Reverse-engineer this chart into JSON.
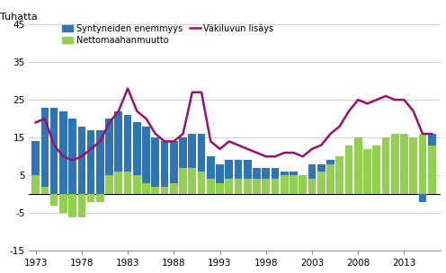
{
  "years": [
    1973,
    1974,
    1975,
    1976,
    1977,
    1978,
    1979,
    1980,
    1981,
    1982,
    1983,
    1984,
    1985,
    1986,
    1987,
    1988,
    1989,
    1990,
    1991,
    1992,
    1993,
    1994,
    1995,
    1996,
    1997,
    1998,
    1999,
    2000,
    2001,
    2002,
    2003,
    2004,
    2005,
    2006,
    2007,
    2008,
    2009,
    2010,
    2011,
    2012,
    2013,
    2014,
    2015,
    2016
  ],
  "syntyneiden_enemmyys": [
    14,
    23,
    23,
    22,
    20,
    18,
    17,
    17,
    20,
    22,
    21,
    19,
    18,
    15,
    14,
    14,
    15,
    16,
    16,
    10,
    8,
    9,
    9,
    9,
    7,
    7,
    7,
    6,
    6,
    5,
    8,
    8,
    9,
    9,
    9,
    9,
    9,
    8,
    7,
    6,
    5,
    2,
    -2,
    16
  ],
  "nettomaahanmuutto": [
    5,
    2,
    -3,
    -5,
    -6,
    -6,
    -2,
    -2,
    5,
    6,
    6,
    5,
    3,
    2,
    2,
    3,
    7,
    7,
    6,
    4,
    3,
    4,
    4,
    4,
    4,
    4,
    4,
    5,
    5,
    5,
    4,
    6,
    8,
    10,
    13,
    15,
    12,
    13,
    15,
    16,
    16,
    15,
    16,
    13
  ],
  "vakiluvun_lisays": [
    19,
    20,
    13,
    10,
    9,
    10,
    12,
    14,
    19,
    22,
    28,
    22,
    20,
    16,
    14,
    14,
    16,
    27,
    27,
    14,
    12,
    14,
    13,
    12,
    11,
    10,
    10,
    11,
    11,
    10,
    12,
    13,
    16,
    18,
    22,
    25,
    24,
    25,
    26,
    25,
    25,
    22,
    16,
    16
  ],
  "ylabel": "Tuhatta",
  "ylim": [
    -15,
    45
  ],
  "yticks": [
    -15,
    -5,
    5,
    15,
    25,
    35,
    45
  ],
  "xtick_years": [
    1973,
    1978,
    1983,
    1988,
    1993,
    1998,
    2003,
    2008,
    2013
  ],
  "bar_color_syntyneiden": "#2E75B6",
  "bar_color_netto": "#92D050",
  "line_color_vakiluvun": "#9E0E6E",
  "legend_labels": [
    "Syntyneiden enemmyys",
    "Nettomaahanmuutto",
    "Väkiluvun lisäys"
  ],
  "background_color": "#ffffff",
  "grid_color": "#c8c8c8"
}
